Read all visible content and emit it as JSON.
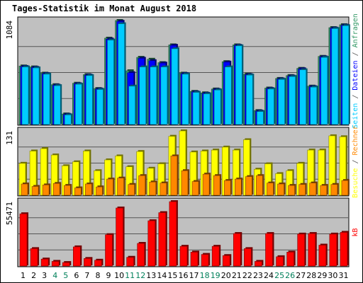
{
  "chart_data": {
    "type": "bar",
    "title": "Tages-Statistik im Monat August 2018",
    "categories": [
      "1",
      "2",
      "3",
      "4",
      "5",
      "6",
      "7",
      "8",
      "9",
      "10",
      "11",
      "12",
      "13",
      "14",
      "15",
      "16",
      "17",
      "18",
      "19",
      "20",
      "21",
      "22",
      "23",
      "24",
      "25",
      "26",
      "27",
      "28",
      "29",
      "30",
      "31"
    ],
    "weekend_days": [
      "4",
      "5",
      "11",
      "12",
      "18",
      "19",
      "25",
      "26"
    ],
    "colors": {
      "background": "#c0c0c0",
      "title": "#0000cc",
      "anfragen": "#339966",
      "dateien": "#0000ff",
      "seiten": "#00ccff",
      "besuche": "#ffff00",
      "rechner": "#ff8800",
      "kb": "#ff0000",
      "weekend_label": "#00805a",
      "weekday_label": "#000000",
      "separator": "#555555"
    },
    "panels": [
      {
        "id": "top",
        "max_label": "1084",
        "ylim": [
          0,
          1084
        ],
        "legend_entries": [
          {
            "label": "Seiten",
            "color": "#00ccff"
          },
          {
            "label": "Dateien",
            "color": "#0000ff"
          },
          {
            "label": "Anfragen",
            "color": "#339966"
          }
        ],
        "series": [
          {
            "name": "Anfragen",
            "values": [
              610,
              600,
              535,
              415,
              110,
              430,
              520,
              375,
              900,
              1084,
              560,
              700,
              680,
              645,
              830,
              535,
              345,
              330,
              370,
              655,
              830,
              525,
              145,
              380,
              480,
              510,
              585,
              400,
              710,
              1010,
              1040
            ]
          },
          {
            "name": "Dateien",
            "values": [
              605,
              595,
              530,
              410,
              105,
              425,
              515,
              370,
              890,
              1075,
              540,
              690,
              665,
              640,
              825,
              530,
              340,
              325,
              365,
              650,
              825,
              520,
              140,
              375,
              475,
              505,
              580,
              395,
              705,
              1005,
              1035
            ]
          },
          {
            "name": "Seiten",
            "values": [
              600,
              590,
              525,
              405,
              100,
              420,
              510,
              365,
              880,
              1050,
              400,
              600,
              600,
              600,
              790,
              525,
              335,
              320,
              360,
              600,
              820,
              515,
              135,
              370,
              470,
              500,
              570,
              390,
              700,
              1000,
              1030
            ]
          }
        ]
      },
      {
        "id": "middle",
        "max_label": "131",
        "ylim": [
          0,
          131
        ],
        "legend_entries": [
          {
            "label": "Besuche",
            "color": "#ffff00"
          },
          {
            "label": "Rechner",
            "color": "#ff8800"
          }
        ],
        "series": [
          {
            "name": "Besuche",
            "values": [
              65,
              90,
              95,
              82,
              60,
              68,
              90,
              50,
              72,
              80,
              58,
              89,
              55,
              64,
              120,
              131,
              88,
              90,
              92,
              98,
              92,
              113,
              53,
              64,
              44,
              50,
              65,
              92,
              92,
              121,
              119
            ]
          },
          {
            "name": "Rechner",
            "values": [
              23,
              18,
              21,
              24,
              20,
              15,
              23,
              17,
              33,
              35,
              22,
              40,
              27,
              25,
              80,
              50,
              28,
              43,
              40,
              30,
              33,
              38,
              40,
              25,
              23,
              20,
              22,
              25,
              20,
              22,
              30
            ]
          }
        ]
      },
      {
        "id": "bottom",
        "max_label": "55471",
        "ylim": [
          0,
          55471
        ],
        "legend_entries": [
          {
            "label": "kB",
            "color": "#ff0000"
          }
        ],
        "series": [
          {
            "name": "kB",
            "values": [
              45000,
              15000,
              6000,
              4000,
              3000,
              16500,
              6500,
              5000,
              27000,
              50000,
              7500,
              19500,
              39000,
              46000,
              55471,
              17000,
              12000,
              10000,
              17000,
              9000,
              28000,
              15000,
              4000,
              28000,
              8000,
              12000,
              27500,
              28000,
              18000,
              27500,
              29000
            ]
          }
        ]
      }
    ]
  }
}
